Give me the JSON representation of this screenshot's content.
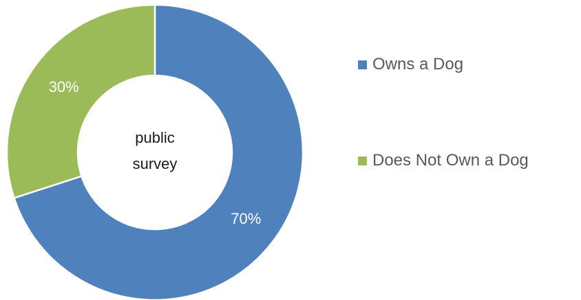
{
  "chart_data": {
    "type": "pie",
    "variant": "donut",
    "categories": [
      "Owns a Dog",
      "Does Not Own a Dog"
    ],
    "values": [
      70,
      30
    ],
    "data_labels": [
      "70%",
      "30%"
    ],
    "colors": [
      "#4f81bd",
      "#9bbb59"
    ],
    "center_text": [
      "public",
      "survey"
    ],
    "legend": {
      "placement": "right",
      "entries": [
        "Owns a Dog",
        "Does Not Own a Dog"
      ]
    }
  }
}
